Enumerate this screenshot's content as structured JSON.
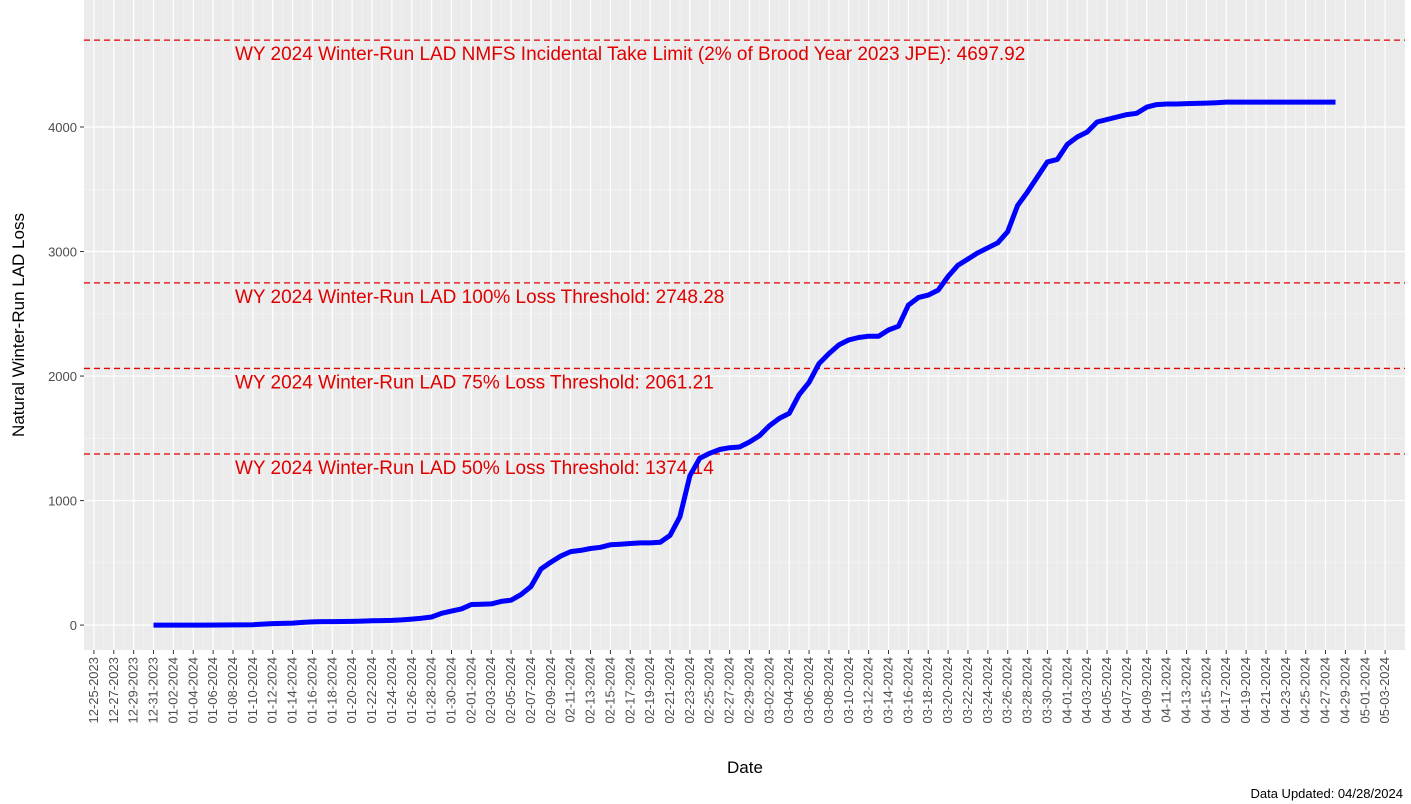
{
  "chart_data": {
    "type": "line",
    "xlabel": "Date",
    "ylabel": "Natural Winter-Run LAD Loss",
    "footnote": "Data Updated: 04/28/2024",
    "xlim": [
      "12-24-2023",
      "05-05-2024"
    ],
    "xticks": [
      "12-25-2023",
      "12-27-2023",
      "12-29-2023",
      "12-31-2023",
      "01-02-2024",
      "01-04-2024",
      "01-06-2024",
      "01-08-2024",
      "01-10-2024",
      "01-12-2024",
      "01-14-2024",
      "01-16-2024",
      "01-18-2024",
      "01-20-2024",
      "01-22-2024",
      "01-24-2024",
      "01-26-2024",
      "01-28-2024",
      "01-30-2024",
      "02-01-2024",
      "02-03-2024",
      "02-05-2024",
      "02-07-2024",
      "02-09-2024",
      "02-11-2024",
      "02-13-2024",
      "02-15-2024",
      "02-17-2024",
      "02-19-2024",
      "02-21-2024",
      "02-23-2024",
      "02-25-2024",
      "02-27-2024",
      "02-29-2024",
      "03-02-2024",
      "03-04-2024",
      "03-06-2024",
      "03-08-2024",
      "03-10-2024",
      "03-12-2024",
      "03-14-2024",
      "03-16-2024",
      "03-18-2024",
      "03-20-2024",
      "03-22-2024",
      "03-24-2024",
      "03-26-2024",
      "03-28-2024",
      "03-30-2024",
      "04-01-2024",
      "04-03-2024",
      "04-05-2024",
      "04-07-2024",
      "04-09-2024",
      "04-11-2024",
      "04-13-2024",
      "04-15-2024",
      "04-17-2024",
      "04-19-2024",
      "04-21-2024",
      "04-23-2024",
      "04-25-2024",
      "04-27-2024",
      "04-29-2024",
      "05-01-2024",
      "05-03-2024"
    ],
    "ylim": [
      -200,
      5020
    ],
    "yticks": [
      0,
      1000,
      2000,
      3000,
      4000
    ],
    "grid": true,
    "hlines": [
      {
        "label": "WY 2024 Winter-Run LAD NMFS Incidental Take Limit (2% of Brood Year 2023 JPE): 4697.92",
        "value": 4697.92,
        "color": "#e00000"
      },
      {
        "label": "WY 2024 Winter-Run LAD 100% Loss Threshold: 2748.28",
        "value": 2748.28,
        "color": "#e00000"
      },
      {
        "label": "WY 2024 Winter-Run LAD 75% Loss Threshold: 2061.21",
        "value": 2061.21,
        "color": "#e00000"
      },
      {
        "label": "WY 2024 Winter-Run LAD 50% Loss Threshold: 1374.14",
        "value": 1374.14,
        "color": "#e00000"
      }
    ],
    "x": [
      "12-31-2023",
      "01-05-2024",
      "01-10-2024",
      "01-11-2024",
      "01-12-2024",
      "01-13-2024",
      "01-14-2024",
      "01-15-2024",
      "01-16-2024",
      "01-17-2024",
      "01-18-2024",
      "01-19-2024",
      "01-20-2024",
      "01-21-2024",
      "01-22-2024",
      "01-23-2024",
      "01-24-2024",
      "01-25-2024",
      "01-26-2024",
      "01-27-2024",
      "01-28-2024",
      "01-29-2024",
      "01-30-2024",
      "01-31-2024",
      "02-01-2024",
      "02-02-2024",
      "02-03-2024",
      "02-04-2024",
      "02-05-2024",
      "02-06-2024",
      "02-07-2024",
      "02-08-2024",
      "02-09-2024",
      "02-10-2024",
      "02-11-2024",
      "02-12-2024",
      "02-13-2024",
      "02-14-2024",
      "02-15-2024",
      "02-16-2024",
      "02-17-2024",
      "02-18-2024",
      "02-19-2024",
      "02-20-2024",
      "02-21-2024",
      "02-22-2024",
      "02-23-2024",
      "02-24-2024",
      "02-25-2024",
      "02-26-2024",
      "02-27-2024",
      "02-28-2024",
      "02-29-2024",
      "03-01-2024",
      "03-02-2024",
      "03-03-2024",
      "03-04-2024",
      "03-05-2024",
      "03-06-2024",
      "03-07-2024",
      "03-08-2024",
      "03-09-2024",
      "03-10-2024",
      "03-11-2024",
      "03-12-2024",
      "03-13-2024",
      "03-14-2024",
      "03-15-2024",
      "03-16-2024",
      "03-17-2024",
      "03-18-2024",
      "03-19-2024",
      "03-20-2024",
      "03-21-2024",
      "03-22-2024",
      "03-23-2024",
      "03-24-2024",
      "03-25-2024",
      "03-26-2024",
      "03-27-2024",
      "03-28-2024",
      "03-29-2024",
      "03-30-2024",
      "03-31-2024",
      "04-01-2024",
      "04-02-2024",
      "04-03-2024",
      "04-04-2024",
      "04-05-2024",
      "04-06-2024",
      "04-07-2024",
      "04-08-2024",
      "04-09-2024",
      "04-10-2024",
      "04-11-2024",
      "04-12-2024",
      "04-13-2024",
      "04-14-2024",
      "04-15-2024",
      "04-16-2024",
      "04-17-2024",
      "04-18-2024",
      "04-19-2024",
      "04-20-2024",
      "04-21-2024",
      "04-22-2024",
      "04-23-2024",
      "04-24-2024",
      "04-25-2024",
      "04-26-2024",
      "04-27-2024",
      "04-28-2024"
    ],
    "series": [
      {
        "color": "#0000ff",
        "values": [
          0,
          0,
          3,
          8,
          12,
          14,
          16,
          22,
          26,
          28,
          28,
          29,
          30,
          32,
          35,
          36,
          38,
          42,
          48,
          55,
          65,
          95,
          112,
          130,
          165,
          167,
          170,
          190,
          200,
          245,
          310,
          450,
          505,
          555,
          590,
          600,
          615,
          625,
          645,
          650,
          655,
          660,
          660,
          665,
          720,
          870,
          1200,
          1340,
          1380,
          1410,
          1425,
          1430,
          1470,
          1520,
          1600,
          1660,
          1700,
          1850,
          1950,
          2100,
          2180,
          2250,
          2290,
          2310,
          2320,
          2320,
          2370,
          2400,
          2570,
          2630,
          2650,
          2690,
          2800,
          2890,
          2940,
          2990,
          3030,
          3070,
          3160,
          3370,
          3480,
          3600,
          3720,
          3740,
          3860,
          3920,
          3960,
          4040,
          4060,
          4080,
          4100,
          4110,
          4160,
          4180,
          4185,
          4185,
          4188,
          4190,
          4192,
          4195,
          4200,
          4200,
          4200,
          4200,
          4200,
          4200,
          4200,
          4200,
          4200,
          4200,
          4200,
          4200
        ]
      }
    ]
  }
}
